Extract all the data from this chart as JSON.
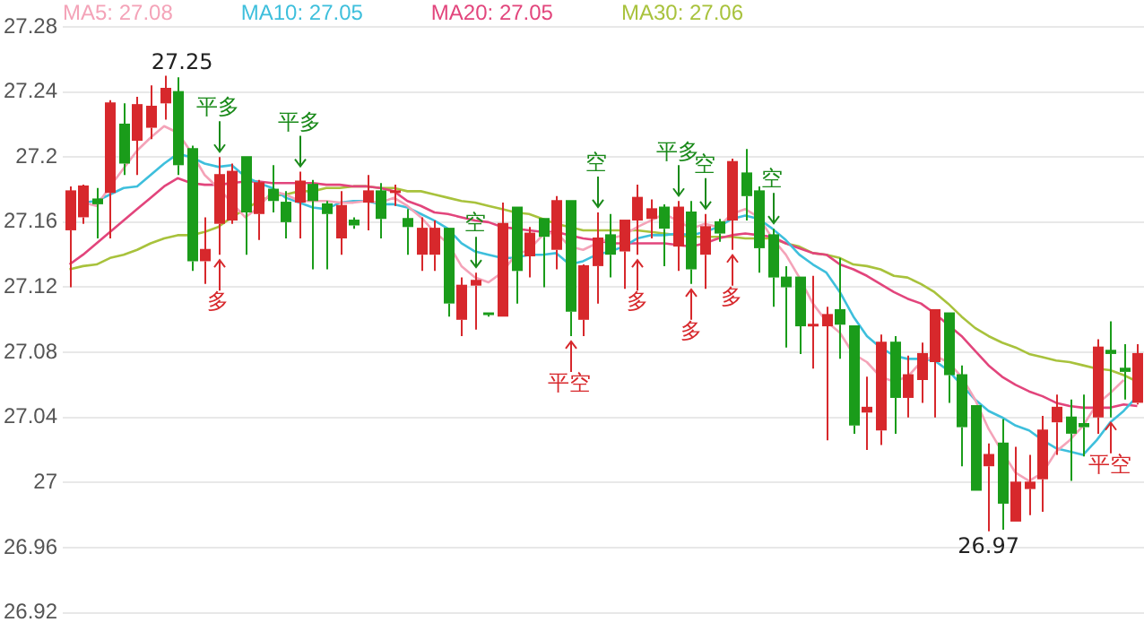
{
  "chart_data": {
    "type": "candlestick",
    "categories": [
      null,
      null,
      null,
      null,
      null,
      null,
      null,
      null,
      null,
      null,
      null,
      null,
      null,
      null,
      null,
      null,
      null,
      null,
      null,
      null,
      null,
      null,
      null,
      null,
      null,
      null,
      null,
      null,
      null,
      null,
      null,
      null,
      null,
      null,
      null,
      null,
      null,
      null,
      null,
      null,
      null,
      null,
      null,
      null,
      null,
      null,
      null,
      null,
      null,
      null,
      null,
      null,
      null,
      null,
      null,
      null,
      null,
      null,
      null,
      null,
      null,
      null,
      null,
      null,
      null,
      null,
      null,
      null,
      null,
      null,
      null,
      null,
      null,
      null,
      null,
      null,
      null,
      null,
      null,
      null
    ],
    "ohlc": [
      [
        27.155,
        27.182,
        27.12,
        27.179
      ],
      [
        27.163,
        27.183,
        27.159,
        27.182
      ],
      [
        27.174,
        27.181,
        27.15,
        27.171
      ],
      [
        27.178,
        27.235,
        27.15,
        27.233
      ],
      [
        27.22,
        27.233,
        27.189,
        27.196
      ],
      [
        27.21,
        27.237,
        27.189,
        27.232
      ],
      [
        27.218,
        27.244,
        27.211,
        27.231
      ],
      [
        27.233,
        27.25,
        27.223,
        27.242
      ],
      [
        27.24,
        27.249,
        27.189,
        27.195
      ],
      [
        27.205,
        27.207,
        27.13,
        27.136
      ],
      [
        27.136,
        27.163,
        27.122,
        27.143
      ],
      [
        27.159,
        27.2,
        27.14,
        27.189
      ],
      [
        27.161,
        27.196,
        27.159,
        27.191
      ],
      [
        27.2,
        27.2,
        27.14,
        27.166
      ],
      [
        27.165,
        27.186,
        27.149,
        27.184
      ],
      [
        27.18,
        27.195,
        27.166,
        27.173
      ],
      [
        27.172,
        27.179,
        27.15,
        27.16
      ],
      [
        27.172,
        27.191,
        27.15,
        27.185
      ],
      [
        27.183,
        27.186,
        27.131,
        27.173
      ],
      [
        27.171,
        27.173,
        27.131,
        27.165
      ],
      [
        27.15,
        27.179,
        27.14,
        27.17
      ],
      [
        27.161,
        27.163,
        27.156,
        27.158
      ],
      [
        27.172,
        27.189,
        27.155,
        27.179
      ],
      [
        27.179,
        27.184,
        27.15,
        27.162
      ],
      [
        27.178,
        27.183,
        27.17,
        27.179
      ],
      [
        27.162,
        27.168,
        27.14,
        27.157
      ],
      [
        27.14,
        27.163,
        27.13,
        27.156
      ],
      [
        27.14,
        27.161,
        27.13,
        27.156
      ],
      [
        27.156,
        27.156,
        27.102,
        27.11
      ],
      [
        27.1,
        27.126,
        27.09,
        27.121
      ],
      [
        27.121,
        27.129,
        27.094,
        27.124
      ],
      [
        27.104,
        27.104,
        27.102,
        27.103
      ],
      [
        27.102,
        27.172,
        27.102,
        27.159
      ],
      [
        27.169,
        27.169,
        27.11,
        27.13
      ],
      [
        27.139,
        27.157,
        27.126,
        27.153
      ],
      [
        27.162,
        27.162,
        27.12,
        27.151
      ],
      [
        27.143,
        27.176,
        27.131,
        27.173
      ],
      [
        27.173,
        27.173,
        27.09,
        27.105
      ],
      [
        27.1,
        27.134,
        27.09,
        27.133
      ],
      [
        27.133,
        27.166,
        27.11,
        27.15
      ],
      [
        27.152,
        27.165,
        27.126,
        27.14
      ],
      [
        27.142,
        27.161,
        27.119,
        27.161
      ],
      [
        27.161,
        27.183,
        27.14,
        27.175
      ],
      [
        27.162,
        27.174,
        27.15,
        27.168
      ],
      [
        27.169,
        27.171,
        27.133,
        27.156
      ],
      [
        27.145,
        27.173,
        27.13,
        27.169
      ],
      [
        27.166,
        27.173,
        27.122,
        27.131
      ],
      [
        27.14,
        27.165,
        27.119,
        27.157
      ],
      [
        27.16,
        27.162,
        27.148,
        27.153
      ],
      [
        27.161,
        27.199,
        27.143,
        27.197
      ],
      [
        27.19,
        27.205,
        27.161,
        27.176
      ],
      [
        27.179,
        27.182,
        27.129,
        27.144
      ],
      [
        27.152,
        27.156,
        27.108,
        27.126
      ],
      [
        27.126,
        27.133,
        27.083,
        27.12
      ],
      [
        27.126,
        27.126,
        27.079,
        27.096
      ],
      [
        27.096,
        27.127,
        27.07,
        27.097
      ],
      [
        27.096,
        27.108,
        27.026,
        27.103
      ],
      [
        27.106,
        27.138,
        27.076,
        27.097
      ],
      [
        27.096,
        27.096,
        27.03,
        27.035
      ],
      [
        27.043,
        27.065,
        27.02,
        27.046
      ],
      [
        27.032,
        27.091,
        27.023,
        27.086
      ],
      [
        27.086,
        27.09,
        27.03,
        27.052
      ],
      [
        27.052,
        27.078,
        27.04,
        27.066
      ],
      [
        27.063,
        27.086,
        27.049,
        27.079
      ],
      [
        27.074,
        27.106,
        27.04,
        27.106
      ],
      [
        27.104,
        27.104,
        27.049,
        27.066
      ],
      [
        27.066,
        27.072,
        27.01,
        27.034
      ],
      [
        27.047,
        27.047,
        26.995,
        26.995
      ],
      [
        27.01,
        27.024,
        26.97,
        27.017
      ],
      [
        27.024,
        27.039,
        26.971,
        26.987
      ],
      [
        26.976,
        27.022,
        26.976,
        27.0
      ],
      [
        26.996,
        27.017,
        26.98,
        27.0
      ],
      [
        27.002,
        27.041,
        26.982,
        27.032
      ],
      [
        27.037,
        27.054,
        27.017,
        27.046
      ],
      [
        27.04,
        27.051,
        27.001,
        27.03
      ],
      [
        27.036,
        27.054,
        27.016,
        27.034
      ],
      [
        27.04,
        27.088,
        27.03,
        27.083
      ],
      [
        27.081,
        27.099,
        27.04,
        27.079
      ],
      [
        27.07,
        27.085,
        27.051,
        27.068
      ],
      [
        27.049,
        27.085,
        27.048,
        27.079
      ]
    ],
    "colors": [
      "#d7282c",
      "#d7282c",
      "#1a9c1a",
      "#d7282c",
      "#1a9c1a",
      "#d7282c",
      "#d7282c",
      "#d7282c",
      "#1a9c1a",
      "#1a9c1a",
      "#d7282c",
      "#d7282c",
      "#d7282c",
      "#1a9c1a",
      "#d7282c",
      "#1a9c1a",
      "#1a9c1a",
      "#d7282c",
      "#1a9c1a",
      "#1a9c1a",
      "#d7282c",
      "#1a9c1a",
      "#d7282c",
      "#1a9c1a",
      "#d7282c",
      "#1a9c1a",
      "#d7282c",
      "#d7282c",
      "#1a9c1a",
      "#d7282c",
      "#d7282c",
      "#1a9c1a",
      "#d7282c",
      "#1a9c1a",
      "#d7282c",
      "#1a9c1a",
      "#d7282c",
      "#1a9c1a",
      "#d7282c",
      "#d7282c",
      "#1a9c1a",
      "#d7282c",
      "#d7282c",
      "#d7282c",
      "#1a9c1a",
      "#d7282c",
      "#1a9c1a",
      "#d7282c",
      "#1a9c1a",
      "#d7282c",
      "#1a9c1a",
      "#1a9c1a",
      "#1a9c1a",
      "#1a9c1a",
      "#1a9c1a",
      "#d7282c",
      "#d7282c",
      "#1a9c1a",
      "#1a9c1a",
      "#d7282c",
      "#d7282c",
      "#1a9c1a",
      "#d7282c",
      "#d7282c",
      "#d7282c",
      "#1a9c1a",
      "#1a9c1a",
      "#1a9c1a",
      "#d7282c",
      "#1a9c1a",
      "#d7282c",
      "#d7282c",
      "#d7282c",
      "#d7282c",
      "#1a9c1a",
      "#1a9c1a",
      "#d7282c",
      "#1a9c1a",
      "#1a9c1a",
      "#d7282c"
    ],
    "series": [
      {
        "name": "MA5: 27.08",
        "type": "line",
        "color": "#f4a3b8",
        "values": [
          null,
          27.172,
          27.17,
          27.182,
          27.193,
          27.204,
          27.212,
          27.219,
          27.215,
          27.203,
          27.189,
          27.181,
          27.172,
          27.163,
          27.169,
          27.179,
          27.177,
          27.173,
          27.173,
          27.173,
          27.172,
          27.172,
          27.173,
          27.172,
          27.175,
          27.17,
          27.163,
          27.154,
          27.147,
          27.133,
          27.126,
          27.123,
          27.129,
          27.14,
          27.143,
          27.152,
          27.154,
          27.145,
          27.143,
          27.147,
          27.15,
          27.152,
          27.157,
          27.161,
          27.165,
          27.161,
          27.156,
          27.159,
          27.157,
          27.165,
          27.168,
          27.163,
          27.15,
          27.14,
          27.126,
          27.11,
          27.099,
          27.092,
          27.079,
          27.074,
          27.065,
          27.062,
          27.065,
          27.074,
          27.078,
          27.074,
          27.065,
          27.051,
          27.033,
          27.019,
          27.006,
          27.001,
          27.006,
          27.019,
          27.026,
          27.035,
          27.048,
          27.055,
          27.063,
          null
        ]
      },
      {
        "name": "MA10: 27.05",
        "type": "line",
        "color": "#3ebfdc",
        "values": [
          null,
          27.172,
          27.173,
          27.177,
          27.181,
          27.182,
          27.189,
          27.196,
          27.202,
          27.2,
          27.196,
          27.194,
          27.195,
          27.188,
          27.184,
          27.181,
          27.175,
          27.172,
          27.169,
          27.168,
          27.172,
          27.173,
          27.173,
          27.171,
          27.171,
          27.169,
          27.165,
          27.161,
          27.156,
          27.147,
          27.142,
          27.14,
          27.138,
          27.138,
          27.14,
          27.14,
          27.141,
          27.134,
          27.136,
          27.14,
          27.142,
          27.145,
          27.15,
          27.152,
          27.152,
          27.153,
          27.152,
          27.154,
          27.157,
          27.162,
          27.164,
          27.162,
          27.156,
          27.149,
          27.14,
          27.134,
          27.129,
          27.117,
          27.102,
          27.09,
          27.083,
          27.078,
          27.076,
          27.076,
          27.075,
          27.069,
          27.06,
          27.051,
          27.044,
          27.04,
          27.035,
          27.032,
          27.026,
          27.021,
          27.019,
          27.017,
          27.026,
          27.037,
          27.044,
          27.053
        ]
      },
      {
        "name": "MA20: 27.05",
        "type": "line",
        "color": "#e2457c",
        "values": [
          27.134,
          27.14,
          27.147,
          27.154,
          27.161,
          27.168,
          27.175,
          27.182,
          27.187,
          27.184,
          27.183,
          27.183,
          27.184,
          27.185,
          27.185,
          27.184,
          27.184,
          27.184,
          27.184,
          27.183,
          27.183,
          27.182,
          27.182,
          27.181,
          27.179,
          27.173,
          27.17,
          27.166,
          27.165,
          27.163,
          27.161,
          27.16,
          27.157,
          27.156,
          27.155,
          27.154,
          27.154,
          27.152,
          27.15,
          27.149,
          27.147,
          27.147,
          27.147,
          27.147,
          27.147,
          27.146,
          27.145,
          27.147,
          27.15,
          27.152,
          27.153,
          27.152,
          27.151,
          27.147,
          27.144,
          27.141,
          27.14,
          27.134,
          27.131,
          27.127,
          27.122,
          27.117,
          27.113,
          27.11,
          27.104,
          27.097,
          27.09,
          27.081,
          27.072,
          27.065,
          27.06,
          27.056,
          27.053,
          27.049,
          27.047,
          27.046,
          27.046,
          27.046,
          27.048,
          27.047
        ]
      },
      {
        "name": "MA30: 27.06",
        "type": "line",
        "color": "#a8c23c",
        "values": [
          27.131,
          27.133,
          27.134,
          27.138,
          27.14,
          27.143,
          27.147,
          27.15,
          27.152,
          27.152,
          27.154,
          27.157,
          27.163,
          27.168,
          27.173,
          27.176,
          27.177,
          27.179,
          27.179,
          27.181,
          27.181,
          27.182,
          27.182,
          27.181,
          27.181,
          27.179,
          27.179,
          27.177,
          27.175,
          27.173,
          27.172,
          27.17,
          27.168,
          27.166,
          27.165,
          27.162,
          27.159,
          27.157,
          27.155,
          27.155,
          27.155,
          27.155,
          27.155,
          27.154,
          27.153,
          27.152,
          27.151,
          27.151,
          27.151,
          27.151,
          27.15,
          27.15,
          27.15,
          27.147,
          27.145,
          27.141,
          27.14,
          27.138,
          27.134,
          27.133,
          27.131,
          27.127,
          27.126,
          27.122,
          27.117,
          27.11,
          27.102,
          27.095,
          27.09,
          27.086,
          27.083,
          27.079,
          27.077,
          27.075,
          27.074,
          27.072,
          27.07,
          27.069,
          27.066,
          27.062
        ]
      }
    ],
    "ylim": [
      26.92,
      27.28
    ],
    "yticks": [
      26.92,
      26.96,
      27,
      27.04,
      27.08,
      27.12,
      27.16,
      27.2,
      27.24,
      27.28
    ],
    "tick_labels": "y",
    "grid": "y",
    "marker": "none",
    "annotations": [
      {
        "text": "27.25",
        "y": 27.25
      },
      {
        "text": "平多",
        "y": 27.2
      },
      {
        "text": "多",
        "y": 27.14
      },
      {
        "text": "平多",
        "y": 27.191
      },
      {
        "text": "空",
        "y": 27.129
      },
      {
        "text": "平空",
        "y": 27.09
      },
      {
        "text": "空",
        "y": 27.166
      },
      {
        "text": "多",
        "y": 27.14
      },
      {
        "text": "平多",
        "y": 27.173
      },
      {
        "text": "多",
        "y": 27.122
      },
      {
        "text": "空",
        "y": 27.165
      },
      {
        "text": "多",
        "y": 27.143
      },
      {
        "text": "空",
        "y": 27.156
      },
      {
        "text": "26.97",
        "y": 26.97
      },
      {
        "text": "平空",
        "y": 27.04
      }
    ]
  }
}
